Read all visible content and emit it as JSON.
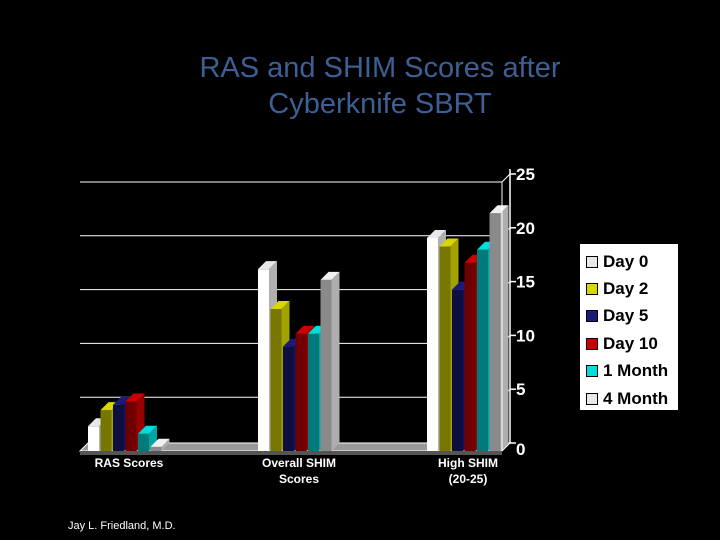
{
  "title_lines": [
    "RAS and SHIM  Scores after",
    "Cyberknife SBRT"
  ],
  "footer": "Jay L. Friedland, M.D.",
  "chart_data": {
    "type": "bar",
    "title": "RAS and SHIM  Scores after Cyberknife SBRT",
    "categories": [
      {
        "lines": [
          "RAS Scores"
        ]
      },
      {
        "lines": [
          "Overall SHIM",
          "Scores"
        ]
      },
      {
        "lines": [
          "High SHIM",
          "(20-25)"
        ]
      }
    ],
    "series": [
      {
        "name": "Day 0",
        "color": "#e8e8e8",
        "values": [
          2.3,
          16.9,
          19.8
        ]
      },
      {
        "name": "Day 2",
        "color": "#d8d800",
        "values": [
          3.8,
          13.2,
          19.0
        ]
      },
      {
        "name": "Day 5",
        "color": "#1a1a7a",
        "values": [
          4.3,
          9.7,
          15.0
        ]
      },
      {
        "name": "Day 10",
        "color": "#cc0000",
        "values": [
          4.6,
          10.9,
          17.5
        ]
      },
      {
        "name": "1 Month",
        "color": "#00dddd",
        "values": [
          1.6,
          10.9,
          18.7
        ]
      },
      {
        "name": "4 Month",
        "color": "#e8e8e8",
        "values": [
          0.4,
          15.9,
          22.1
        ]
      }
    ],
    "ylim": [
      0,
      25
    ],
    "yticks": [
      "0",
      "5",
      "10",
      "15",
      "20",
      "25"
    ],
    "grid": true,
    "legend": "right"
  }
}
